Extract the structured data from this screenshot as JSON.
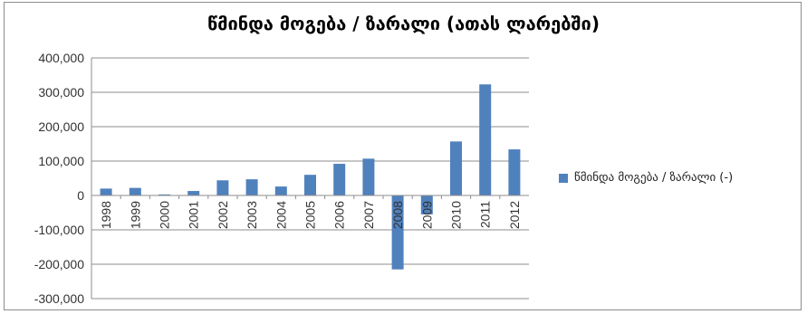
{
  "chart_data": {
    "type": "bar",
    "title": "წმინდა მოგება / ზარალი (ათას ლარებში)",
    "categories": [
      "1998",
      "1999",
      "2000",
      "2001",
      "2002",
      "2003",
      "2004",
      "2005",
      "2006",
      "2007",
      "2008",
      "2009",
      "2010",
      "2011",
      "2012"
    ],
    "series": [
      {
        "name": "წმინდა მოგება / ზარალი (-)",
        "values": [
          20000,
          22000,
          3000,
          13000,
          44000,
          47000,
          26000,
          60000,
          92000,
          107000,
          -215000,
          -55000,
          157000,
          323000,
          134000
        ],
        "color": "#4f81bd"
      }
    ],
    "ylim": [
      -300000,
      400000
    ],
    "yticks": [
      "400,000",
      "300,000",
      "200,000",
      "100,000",
      "0",
      "-100,000",
      "-200,000",
      "-300,000"
    ],
    "ytick_values": [
      400000,
      300000,
      200000,
      100000,
      0,
      -100000,
      -200000,
      -300000
    ],
    "grid": true,
    "legend_position": "right"
  }
}
